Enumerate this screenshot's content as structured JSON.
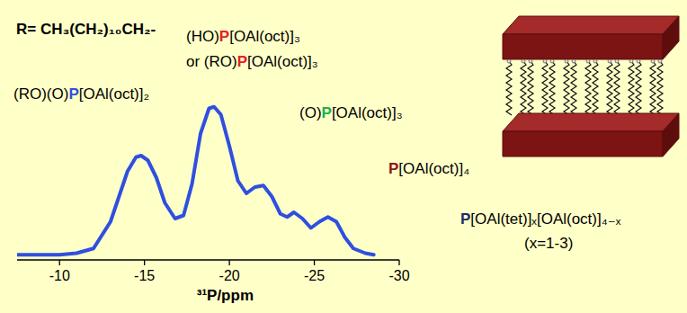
{
  "chart_data": {
    "type": "line",
    "x_label": "³¹P/ppm",
    "x": [
      -7.5,
      -8,
      -9,
      -10,
      -11,
      -12,
      -13,
      -13.5,
      -14,
      -14.5,
      -14.8,
      -15.2,
      -15.7,
      -16.2,
      -16.8,
      -17.3,
      -17.8,
      -18.3,
      -18.8,
      -19.1,
      -19.5,
      -20,
      -20.5,
      -21,
      -21.5,
      -22,
      -22.5,
      -23,
      -23.4,
      -23.8,
      -24.3,
      -24.8,
      -25.3,
      -25.8,
      -26.3,
      -26.8,
      -27.3,
      -28,
      -28.5
    ],
    "series": [
      {
        "color": "#2f4fe0",
        "values": [
          1,
          1,
          1,
          1,
          2,
          5,
          22,
          38,
          54,
          63,
          64,
          61,
          50,
          34,
          24,
          26,
          46,
          78,
          94,
          95,
          90,
          70,
          48,
          40,
          44,
          45,
          38,
          27,
          25,
          28,
          24,
          18,
          22,
          25,
          22,
          12,
          5,
          2,
          1
        ]
      }
    ],
    "xlim": [
      -7.5,
      -30
    ],
    "xticks": [
      -10,
      -15,
      -20,
      -25,
      -30
    ],
    "ylim": [
      0,
      100
    ],
    "tick_labels": "x",
    "grid": false,
    "annotations": [
      {
        "parts": [
          {
            "text": "R= CH₃(CH₂)₁₀CH₂-"
          }
        ]
      },
      {
        "parts": [
          {
            "text": "(RO)(O)"
          },
          {
            "text": "P",
            "color": "#2f4fe0"
          },
          {
            "text": "[OAl(oct)]₂"
          }
        ]
      },
      {
        "parts": [
          {
            "text": "(HO)"
          },
          {
            "text": "P",
            "color": "#e8201c"
          },
          {
            "text": "[OAl(oct)]₃"
          }
        ]
      },
      {
        "parts": [
          {
            "text": "or (RO)"
          },
          {
            "text": "P",
            "color": "#e8201c"
          },
          {
            "text": "[OAl(oct)]₃"
          }
        ]
      },
      {
        "parts": [
          {
            "text": "(O)"
          },
          {
            "text": "P",
            "color": "#22b04a"
          },
          {
            "text": "[OAl(oct)]₃"
          }
        ]
      },
      {
        "parts": [
          {
            "text": "P",
            "color": "#8b1a1a"
          },
          {
            "text": "[OAl(oct)]₄"
          }
        ]
      },
      {
        "parts": [
          {
            "text": "P",
            "color": "#1a2a6a"
          },
          {
            "text": "[OAl(tet)]ₓ[OAl(oct)]₄₋ₓ"
          }
        ]
      },
      {
        "parts": [
          {
            "text": "(x=1-3)"
          }
        ]
      }
    ]
  }
}
